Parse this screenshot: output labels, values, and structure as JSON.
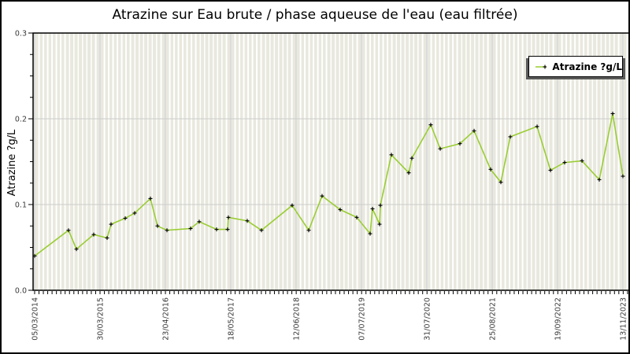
{
  "chart_data": {
    "type": "line",
    "title": "Atrazine sur Eau brute / phase aqueuse de l'eau (eau filtrée)",
    "xlabel": "",
    "ylabel": "Atrazine ?g/L",
    "legend": {
      "entries": [
        "Atrazine ?g/L"
      ],
      "position": "top-right"
    },
    "ylim": [
      0.0,
      0.3
    ],
    "y_major_ticks": [
      0.0,
      0.1,
      0.2,
      0.3
    ],
    "y_tick_labels": [
      "0.0",
      "0.1",
      "0.2",
      "0.3"
    ],
    "y_minor_step": 0.025,
    "grid": {
      "horizontal": "major-gray-lines",
      "vertical": "minor-stripes-plus-major-gray-lines"
    },
    "x_tick_labels": [
      "05/03/2014",
      "30/03/2015",
      "23/04/2016",
      "18/05/2017",
      "12/06/2018",
      "07/07/2019",
      "31/07/2020",
      "25/08/2021",
      "19/09/2022",
      "13/11/2023"
    ],
    "x_tick_pos": [
      0.0026,
      0.1123,
      0.2219,
      0.3316,
      0.4412,
      0.5509,
      0.6605,
      0.7702,
      0.8798,
      0.9894
    ],
    "x_minor_divisions_per_major": 15,
    "series": [
      {
        "name": "Atrazine ?g/L",
        "color": "#9ACD32",
        "marker": "plus",
        "marker_color": "#000000",
        "points": [
          {
            "x": 0.0026,
            "v": 0.04
          },
          {
            "x": 0.0594,
            "v": 0.07
          },
          {
            "x": 0.0727,
            "v": 0.048
          },
          {
            "x": 0.1017,
            "v": 0.065
          },
          {
            "x": 0.1242,
            "v": 0.061
          },
          {
            "x": 0.1308,
            "v": 0.077
          },
          {
            "x": 0.1546,
            "v": 0.084
          },
          {
            "x": 0.1704,
            "v": 0.09
          },
          {
            "x": 0.1968,
            "v": 0.107
          },
          {
            "x": 0.2087,
            "v": 0.075
          },
          {
            "x": 0.2246,
            "v": 0.07
          },
          {
            "x": 0.2642,
            "v": 0.072
          },
          {
            "x": 0.2787,
            "v": 0.08
          },
          {
            "x": 0.3078,
            "v": 0.071
          },
          {
            "x": 0.3263,
            "v": 0.071
          },
          {
            "x": 0.3276,
            "v": 0.085
          },
          {
            "x": 0.3593,
            "v": 0.081
          },
          {
            "x": 0.3831,
            "v": 0.07
          },
          {
            "x": 0.4346,
            "v": 0.099
          },
          {
            "x": 0.4624,
            "v": 0.07
          },
          {
            "x": 0.4848,
            "v": 0.11
          },
          {
            "x": 0.5152,
            "v": 0.094
          },
          {
            "x": 0.5429,
            "v": 0.085
          },
          {
            "x": 0.5654,
            "v": 0.066
          },
          {
            "x": 0.5694,
            "v": 0.095
          },
          {
            "x": 0.5812,
            "v": 0.077
          },
          {
            "x": 0.5826,
            "v": 0.099
          },
          {
            "x": 0.6011,
            "v": 0.158
          },
          {
            "x": 0.6302,
            "v": 0.137
          },
          {
            "x": 0.6354,
            "v": 0.154
          },
          {
            "x": 0.6671,
            "v": 0.193
          },
          {
            "x": 0.683,
            "v": 0.165
          },
          {
            "x": 0.716,
            "v": 0.171
          },
          {
            "x": 0.7398,
            "v": 0.186
          },
          {
            "x": 0.7675,
            "v": 0.141
          },
          {
            "x": 0.7847,
            "v": 0.126
          },
          {
            "x": 0.8005,
            "v": 0.179
          },
          {
            "x": 0.8455,
            "v": 0.191
          },
          {
            "x": 0.8679,
            "v": 0.14
          },
          {
            "x": 0.8917,
            "v": 0.149
          },
          {
            "x": 0.9208,
            "v": 0.151
          },
          {
            "x": 0.9498,
            "v": 0.129
          },
          {
            "x": 0.9723,
            "v": 0.206
          },
          {
            "x": 0.9894,
            "v": 0.133
          }
        ]
      }
    ]
  },
  "colors": {
    "background": "#ffffff",
    "figure_border": "#000000",
    "stripe": "#e8e8de",
    "grid_major_h": "#cccccc",
    "grid_major_v": "#bbbbbb",
    "frame": "#000000",
    "tick": "#000000",
    "tick_label": "#3a3a3a",
    "series_line": "#9ACD32",
    "marker": "#000000",
    "legend_shadow": "#5a5a5a"
  }
}
